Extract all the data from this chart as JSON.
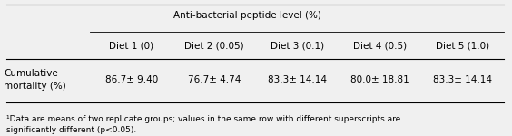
{
  "title": "Anti-bacterial peptide level (%)",
  "col_headers": [
    "Diet 1 (0)",
    "Diet 2 (0.05)",
    "Diet 3 (0.1)",
    "Diet 4 (0.5)",
    "Diet 5 (1.0)"
  ],
  "row_label": "Cumulative\nmortality (%)",
  "row_values": [
    "86.7± 9.40",
    "76.7± 4.74",
    "83.3± 14.14",
    "80.0± 18.81",
    "83.3± 14.14"
  ],
  "footnote": "¹Data are means of two replicate groups; values in the same row with different superscripts are\nsignificantly different (p<0.05).",
  "bg_color": "#f0f0f0",
  "table_bg": "#ffffff",
  "font_size": 7.5,
  "footnote_font_size": 6.5
}
